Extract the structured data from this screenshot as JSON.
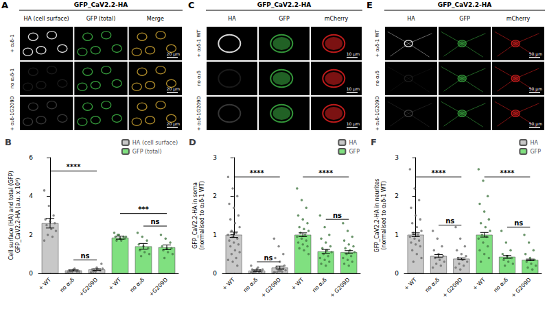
{
  "image_panels": [
    {
      "label": "A",
      "title": "GFP_CaV2.2-HA",
      "columns": [
        "HA (cell surface)",
        "GFP (total)",
        "Merge"
      ],
      "rows": [
        "+ α₂δ-1",
        "no α₂δ-1",
        "+ α₂δ-1G209D"
      ],
      "scale_bar": "20 µm"
    },
    {
      "label": "C",
      "title": "GFP_CaV2.2-HA",
      "columns": [
        "HA",
        "GFP",
        "mCherry"
      ],
      "rows": [
        "+ α₂δ-1 WT",
        "no α₂δ",
        "+ α₂δ-1G209D"
      ],
      "scale_bar": "10 µm"
    },
    {
      "label": "E",
      "title": "GFP_CaV2.2-HA",
      "columns": [
        "HA",
        "GFP",
        "mCherry"
      ],
      "rows": [
        "+ α₂δ-1 WT",
        "no α₂δ",
        "+ α₂δ-1G209D"
      ],
      "scale_bar": "50 µm"
    }
  ],
  "chart_data": [
    {
      "type": "bar",
      "title": "B",
      "y_label": "Cell surface (HA) and total (GFP)\nGFP_CaV2.2-HA (a.u. x 10³)",
      "categories": [
        "+ WT",
        "no α₂δ",
        "+G209D",
        "+ WT",
        "no α₂δ",
        "+G209D"
      ],
      "ylim": [
        0,
        6
      ],
      "yticks": [
        0,
        2,
        4,
        6
      ],
      "grid": false,
      "legend": "upper right",
      "series": [
        {
          "name": "HA (cell surface)",
          "color": "#c8c8c8",
          "values": [
            2.6,
            0.15,
            0.2,
            null,
            null,
            null
          ],
          "errors": [
            0.25,
            0.03,
            0.04,
            null,
            null,
            null
          ],
          "points": [
            [
              4.3,
              3.5,
              3.0,
              2.8,
              2.7,
              2.6,
              2.5,
              2.3,
              2.2,
              2.0,
              1.9,
              1.7
            ],
            [
              0.05,
              0.1,
              0.1,
              0.15,
              0.2,
              0.15,
              0.1,
              0.25,
              0.1
            ],
            [
              0.05,
              0.1,
              0.15,
              0.2,
              0.3,
              0.5,
              0.1,
              0.2,
              0.25,
              0.15
            ],
            [],
            [],
            []
          ]
        },
        {
          "name": "GFP (total)",
          "color": "#80e080",
          "values": [
            null,
            null,
            null,
            1.85,
            1.4,
            1.35
          ],
          "errors": [
            null,
            null,
            null,
            0.08,
            0.15,
            0.12
          ],
          "points": [
            [],
            [],
            [],
            [
              2.1,
              2.0,
              1.9,
              1.9,
              1.8,
              1.8,
              1.7,
              1.7,
              1.9,
              2.0
            ],
            [
              2.1,
              1.9,
              1.7,
              1.5,
              1.4,
              1.3,
              1.2,
              1.1,
              1.0,
              0.9
            ],
            [
              2.0,
              1.8,
              1.6,
              1.4,
              1.3,
              1.3,
              1.2,
              1.1,
              1.0,
              0.8
            ]
          ]
        }
      ],
      "annotations": [
        {
          "text": "****",
          "from": 0,
          "to": 2,
          "y": 5.3
        },
        {
          "text": "ns",
          "from": 1,
          "to": 2,
          "y": 0.7
        },
        {
          "text": "***",
          "from": 3,
          "to": 5,
          "y": 3.1
        },
        {
          "text": "ns",
          "from": 4,
          "to": 5,
          "y": 2.45
        }
      ]
    },
    {
      "type": "bar",
      "title": "D",
      "y_label": "GFP_CaV2.2-HA in soma\n(normalised to α₂δ-1 WT)",
      "categories": [
        "+ WT",
        "no α₂δ",
        "+ G209D",
        "+ WT",
        "no α₂δ",
        "+ G209D"
      ],
      "ylim": [
        0,
        3
      ],
      "yticks": [
        0,
        1,
        2,
        3
      ],
      "grid": false,
      "legend": "upper right",
      "series": [
        {
          "name": "HA",
          "color": "#c8c8c8",
          "values": [
            1.0,
            0.07,
            0.15,
            null,
            null,
            null
          ],
          "errors": [
            0.07,
            0.02,
            0.04,
            null,
            null,
            null
          ],
          "points": [
            [
              2.5,
              2.2,
              2.0,
              1.8,
              1.7,
              1.5,
              1.4,
              1.3,
              1.2,
              1.1,
              1.05,
              1.0,
              0.95,
              0.9,
              0.85,
              0.8,
              0.75,
              0.7,
              0.6,
              0.55,
              0.5,
              0.4,
              0.35,
              0.3,
              0.2
            ],
            [
              0.02,
              0.05,
              0.08,
              0.1,
              0.12,
              0.05,
              0.03,
              0.15,
              0.1,
              0.06,
              0.04,
              0.2
            ],
            [
              0.9,
              0.7,
              0.5,
              0.4,
              0.3,
              0.2,
              0.15,
              0.1,
              0.08,
              0.05,
              0.05,
              0.03,
              0.1,
              0.12,
              0.02,
              0.06
            ],
            [],
            [],
            []
          ]
        },
        {
          "name": "GFP",
          "color": "#80e080",
          "values": [
            null,
            null,
            null,
            1.0,
            0.57,
            0.55
          ],
          "errors": [
            null,
            null,
            null,
            0.05,
            0.05,
            0.04
          ],
          "points": [
            [],
            [],
            [],
            [
              2.2,
              1.9,
              1.7,
              1.5,
              1.4,
              1.3,
              1.2,
              1.15,
              1.1,
              1.05,
              1.0,
              0.95,
              0.9,
              0.85,
              0.8,
              0.75,
              0.7,
              0.65,
              0.6,
              0.5
            ],
            [
              1.5,
              1.2,
              1.0,
              0.9,
              0.8,
              0.7,
              0.65,
              0.6,
              0.55,
              0.5,
              0.45,
              0.4,
              0.35,
              0.3,
              0.25,
              0.2
            ],
            [
              1.3,
              1.1,
              0.95,
              0.85,
              0.75,
              0.7,
              0.65,
              0.6,
              0.55,
              0.5,
              0.45,
              0.4,
              0.35,
              0.3,
              0.25,
              0.2
            ]
          ]
        }
      ],
      "annotations": [
        {
          "text": "****",
          "from": 0,
          "to": 2,
          "y": 2.5
        },
        {
          "text": "ns",
          "from": 1,
          "to": 2,
          "y": 0.3
        },
        {
          "text": "****",
          "from": 3,
          "to": 5,
          "y": 2.5
        },
        {
          "text": "ns",
          "from": 4,
          "to": 5,
          "y": 1.4
        }
      ]
    },
    {
      "type": "bar",
      "title": "F",
      "y_label": "GFP_CaV2.2-HA in neurites\n(normalised to α₂δ-1 WT)",
      "categories": [
        "+ WT",
        "no α₂δ",
        "+ G209D",
        "+ WT",
        "no α₂δ",
        "+ G209D"
      ],
      "ylim": [
        0,
        3
      ],
      "yticks": [
        0,
        1,
        2,
        3
      ],
      "grid": false,
      "legend": "upper right",
      "series": [
        {
          "name": "HA",
          "color": "#c8c8c8",
          "values": [
            1.0,
            0.45,
            0.38,
            null,
            null,
            null
          ],
          "errors": [
            0.05,
            0.04,
            0.02,
            null,
            null,
            null
          ],
          "points": [
            [
              2.7,
              2.2,
              1.9,
              1.7,
              1.5,
              1.4,
              1.3,
              1.2,
              1.1,
              1.05,
              1.0,
              0.95,
              0.9,
              0.85,
              0.8,
              0.75,
              0.7,
              0.6,
              0.5,
              0.4,
              0.3
            ],
            [
              1.1,
              0.9,
              0.7,
              0.6,
              0.5,
              0.45,
              0.4,
              0.35,
              0.3,
              0.25,
              0.2,
              0.15
            ],
            [
              1.2,
              0.9,
              0.7,
              0.6,
              0.5,
              0.45,
              0.4,
              0.35,
              0.3,
              0.25,
              0.2,
              0.15,
              0.1
            ],
            [],
            [],
            []
          ]
        },
        {
          "name": "GFP",
          "color": "#80e080",
          "values": [
            null,
            null,
            null,
            1.0,
            0.43,
            0.35
          ],
          "errors": [
            null,
            null,
            null,
            0.06,
            0.04,
            0.02
          ],
          "points": [
            [],
            [],
            [],
            [
              2.7,
              2.4,
              2.0,
              1.8,
              1.6,
              1.4,
              1.3,
              1.2,
              1.1,
              1.0,
              0.95,
              0.9,
              0.8,
              0.7,
              0.6,
              0.5,
              0.4,
              0.3
            ],
            [
              1.1,
              0.8,
              0.6,
              0.5,
              0.45,
              0.4,
              0.35,
              0.3,
              0.25,
              0.2
            ],
            [
              1.0,
              0.8,
              0.6,
              0.5,
              0.4,
              0.35,
              0.3,
              0.25,
              0.2,
              0.15,
              0.1
            ]
          ]
        }
      ],
      "annotations": [
        {
          "text": "****",
          "from": 0,
          "to": 2,
          "y": 2.5
        },
        {
          "text": "ns",
          "from": 1,
          "to": 2,
          "y": 1.25
        },
        {
          "text": "****",
          "from": 3,
          "to": 5,
          "y": 2.5
        },
        {
          "text": "ns",
          "from": 4,
          "to": 5,
          "y": 1.2
        }
      ]
    }
  ]
}
